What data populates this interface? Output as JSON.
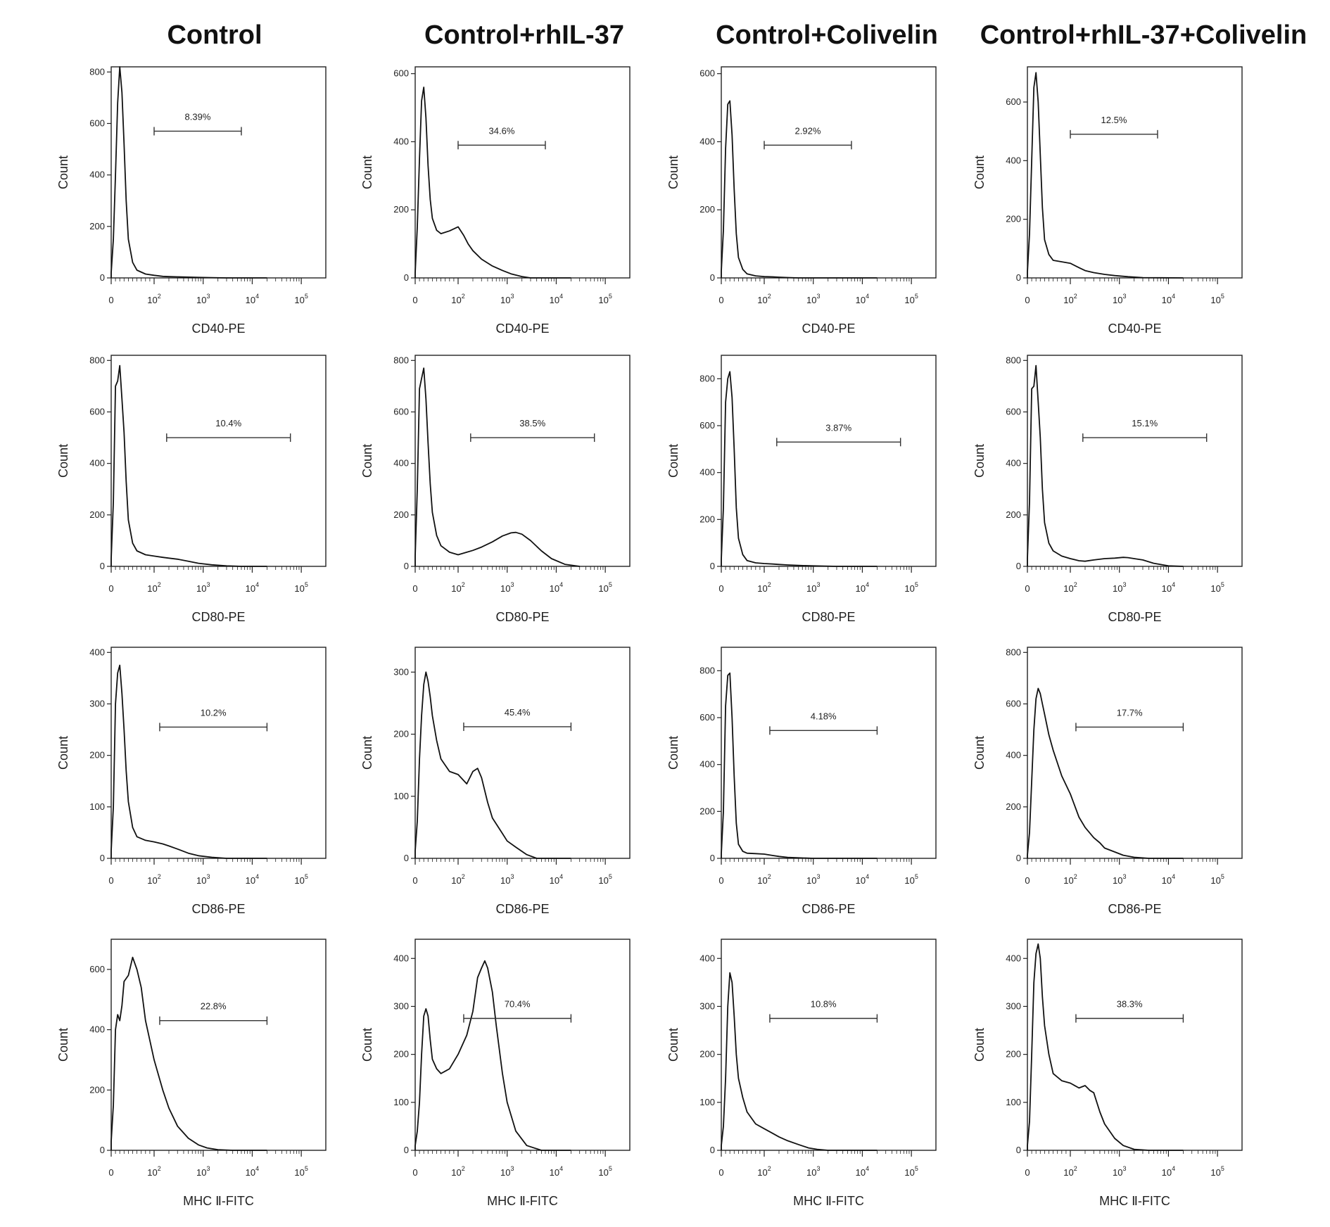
{
  "headers": [
    "Control",
    "Control+rhIL-37",
    "Control+Colivelin",
    "Control+rhIL-37+Colivelin"
  ],
  "chart_data": [
    {
      "type": "line",
      "panel": "Control CD40-PE",
      "xlabel": "CD40-PE",
      "ylabel": "Count",
      "xticks": [
        "0",
        "10^2",
        "10^3",
        "10^4",
        "10^5"
      ],
      "ylim": [
        0,
        820
      ],
      "yticks": [
        0,
        200,
        400,
        600,
        800
      ],
      "gate": {
        "label": "8.39%",
        "from": 100,
        "to": 6000,
        "y": 570
      },
      "x": [
        -30,
        -10,
        5,
        10,
        15,
        20,
        25,
        30,
        35,
        40,
        50,
        60,
        80,
        100,
        150,
        200,
        300,
        500,
        800,
        1500,
        3000,
        20000
      ],
      "y": [
        0,
        20,
        150,
        400,
        680,
        820,
        720,
        520,
        300,
        150,
        60,
        30,
        15,
        10,
        6,
        5,
        4,
        3,
        2,
        1,
        0,
        0
      ]
    },
    {
      "type": "line",
      "panel": "Control+rhIL-37 CD40-PE",
      "xlabel": "CD40-PE",
      "ylabel": "Count",
      "xticks": [
        "0",
        "10^2",
        "10^3",
        "10^4",
        "10^5"
      ],
      "ylim": [
        0,
        620
      ],
      "yticks": [
        0,
        200,
        400,
        600
      ],
      "gate": {
        "label": "34.6%",
        "from": 100,
        "to": 6000,
        "y": 390
      },
      "x": [
        -30,
        -10,
        5,
        10,
        15,
        20,
        25,
        30,
        35,
        40,
        50,
        60,
        80,
        100,
        130,
        160,
        200,
        300,
        500,
        800,
        1200,
        2000,
        3000,
        20000
      ],
      "y": [
        0,
        15,
        150,
        350,
        520,
        560,
        470,
        330,
        230,
        175,
        140,
        130,
        138,
        150,
        125,
        100,
        80,
        55,
        35,
        22,
        12,
        4,
        0,
        0
      ]
    },
    {
      "type": "line",
      "panel": "Control+Colivelin CD40-PE",
      "xlabel": "CD40-PE",
      "ylabel": "Count",
      "xticks": [
        "0",
        "10^2",
        "10^3",
        "10^4",
        "10^5"
      ],
      "ylim": [
        0,
        620
      ],
      "yticks": [
        0,
        200,
        400,
        600
      ],
      "gate": {
        "label": "2.92%",
        "from": 100,
        "to": 6000,
        "y": 390
      },
      "x": [
        -30,
        -10,
        5,
        10,
        15,
        20,
        25,
        30,
        35,
        40,
        50,
        60,
        80,
        100,
        150,
        200,
        300,
        500,
        1000,
        20000
      ],
      "y": [
        0,
        20,
        140,
        380,
        510,
        520,
        420,
        260,
        130,
        60,
        25,
        12,
        6,
        4,
        3,
        2,
        1,
        0,
        0,
        0
      ]
    },
    {
      "type": "line",
      "panel": "Control+rhIL-37+Colivelin CD40-PE",
      "xlabel": "CD40-PE",
      "ylabel": "Count",
      "xticks": [
        "0",
        "10^2",
        "10^3",
        "10^4",
        "10^5"
      ],
      "ylim": [
        0,
        720
      ],
      "yticks": [
        0,
        200,
        400,
        600
      ],
      "gate": {
        "label": "12.5%",
        "from": 100,
        "to": 6000,
        "y": 490
      },
      "x": [
        -30,
        -10,
        5,
        10,
        15,
        20,
        25,
        30,
        35,
        40,
        50,
        60,
        80,
        100,
        150,
        200,
        300,
        500,
        800,
        1500,
        3000,
        20000
      ],
      "y": [
        0,
        20,
        150,
        400,
        650,
        700,
        600,
        420,
        240,
        130,
        80,
        60,
        55,
        50,
        35,
        25,
        18,
        12,
        8,
        4,
        1,
        0
      ]
    },
    {
      "type": "line",
      "panel": "Control CD80-PE",
      "xlabel": "CD80-PE",
      "ylabel": "Count",
      "xticks": [
        "0",
        "10^2",
        "10^3",
        "10^4",
        "10^5"
      ],
      "ylim": [
        0,
        820
      ],
      "yticks": [
        0,
        200,
        400,
        600,
        800
      ],
      "gate": {
        "label": "10.4%",
        "from": 180,
        "to": 60000,
        "y": 500
      },
      "x": [
        -30,
        -10,
        5,
        10,
        15,
        20,
        25,
        30,
        35,
        40,
        50,
        60,
        80,
        100,
        150,
        200,
        300,
        500,
        800,
        1500,
        3000,
        6000,
        20000
      ],
      "y": [
        0,
        30,
        250,
        700,
        720,
        780,
        650,
        520,
        330,
        180,
        90,
        60,
        45,
        40,
        35,
        32,
        28,
        20,
        12,
        6,
        2,
        0,
        0
      ]
    },
    {
      "type": "line",
      "panel": "Control+rhIL-37 CD80-PE",
      "xlabel": "CD80-PE",
      "ylabel": "Count",
      "xticks": [
        "0",
        "10^2",
        "10^3",
        "10^4",
        "10^5"
      ],
      "ylim": [
        0,
        820
      ],
      "yticks": [
        0,
        200,
        400,
        600,
        800
      ],
      "gate": {
        "label": "38.5%",
        "from": 180,
        "to": 60000,
        "y": 500
      },
      "x": [
        -30,
        -10,
        5,
        10,
        15,
        20,
        25,
        30,
        35,
        40,
        50,
        60,
        80,
        100,
        150,
        200,
        300,
        500,
        800,
        1200,
        1500,
        2000,
        3000,
        5000,
        8000,
        15000,
        30000
      ],
      "y": [
        0,
        40,
        300,
        690,
        730,
        770,
        650,
        480,
        320,
        210,
        120,
        80,
        55,
        45,
        55,
        62,
        75,
        95,
        118,
        130,
        132,
        125,
        100,
        60,
        30,
        8,
        0
      ]
    },
    {
      "type": "line",
      "panel": "Control+Colivelin CD80-PE",
      "xlabel": "CD80-PE",
      "ylabel": "Count",
      "xticks": [
        "0",
        "10^2",
        "10^3",
        "10^4",
        "10^5"
      ],
      "ylim": [
        0,
        900
      ],
      "yticks": [
        0,
        200,
        400,
        600,
        800
      ],
      "gate": {
        "label": "3.87%",
        "from": 180,
        "to": 60000,
        "y": 530
      },
      "x": [
        -30,
        -10,
        5,
        10,
        15,
        20,
        25,
        30,
        35,
        40,
        50,
        60,
        80,
        100,
        150,
        200,
        300,
        500,
        1000,
        3000,
        20000
      ],
      "y": [
        0,
        30,
        250,
        700,
        800,
        830,
        720,
        500,
        250,
        120,
        50,
        25,
        15,
        12,
        10,
        8,
        6,
        4,
        2,
        0,
        0
      ]
    },
    {
      "type": "line",
      "panel": "Control+rhIL-37+Colivelin CD80-PE",
      "xlabel": "CD80-PE",
      "ylabel": "Count",
      "xticks": [
        "0",
        "10^2",
        "10^3",
        "10^4",
        "10^5"
      ],
      "ylim": [
        0,
        820
      ],
      "yticks": [
        0,
        200,
        400,
        600,
        800
      ],
      "gate": {
        "label": "15.1%",
        "from": 180,
        "to": 60000,
        "y": 500
      },
      "x": [
        -30,
        -10,
        5,
        10,
        15,
        20,
        25,
        30,
        35,
        40,
        50,
        60,
        80,
        100,
        150,
        200,
        300,
        500,
        800,
        1200,
        1500,
        2000,
        3000,
        5000,
        10000,
        20000
      ],
      "y": [
        0,
        30,
        250,
        690,
        700,
        780,
        640,
        500,
        300,
        170,
        90,
        60,
        40,
        30,
        22,
        20,
        25,
        30,
        32,
        35,
        34,
        30,
        25,
        12,
        2,
        0
      ]
    },
    {
      "type": "line",
      "panel": "Control CD86-PE",
      "xlabel": "CD86-PE",
      "ylabel": "Count",
      "xticks": [
        "0",
        "10^2",
        "10^3",
        "10^4",
        "10^5"
      ],
      "ylim": [
        0,
        410
      ],
      "yticks": [
        0,
        100,
        200,
        300,
        400
      ],
      "gate": {
        "label": "10.2%",
        "from": 130,
        "to": 20000,
        "y": 255
      },
      "x": [
        -30,
        -10,
        5,
        10,
        15,
        20,
        25,
        30,
        35,
        40,
        50,
        60,
        80,
        100,
        150,
        200,
        300,
        500,
        800,
        1500,
        3000,
        20000
      ],
      "y": [
        0,
        15,
        100,
        300,
        360,
        375,
        320,
        250,
        170,
        110,
        60,
        42,
        35,
        32,
        28,
        24,
        18,
        10,
        5,
        2,
        0,
        0
      ]
    },
    {
      "type": "line",
      "panel": "Control+rhIL-37 CD86-PE",
      "xlabel": "CD86-PE",
      "ylabel": "Count",
      "xticks": [
        "0",
        "10^2",
        "10^3",
        "10^4",
        "10^5"
      ],
      "ylim": [
        0,
        340
      ],
      "yticks": [
        0,
        100,
        200,
        300
      ],
      "gate": {
        "label": "45.4%",
        "from": 130,
        "to": 20000,
        "y": 212
      },
      "x": [
        -30,
        -10,
        5,
        10,
        15,
        20,
        25,
        30,
        35,
        40,
        50,
        60,
        80,
        100,
        150,
        200,
        250,
        300,
        400,
        500,
        800,
        1000,
        1500,
        2500,
        4000,
        20000
      ],
      "y": [
        0,
        12,
        60,
        160,
        230,
        280,
        300,
        285,
        260,
        230,
        190,
        160,
        140,
        135,
        120,
        140,
        145,
        130,
        90,
        65,
        40,
        28,
        18,
        6,
        0,
        0
      ]
    },
    {
      "type": "line",
      "panel": "Control+Colivelin CD86-PE",
      "xlabel": "CD86-PE",
      "ylabel": "Count",
      "xticks": [
        "0",
        "10^2",
        "10^3",
        "10^4",
        "10^5"
      ],
      "ylim": [
        0,
        900
      ],
      "yticks": [
        0,
        200,
        400,
        600,
        800
      ],
      "gate": {
        "label": "4.18%",
        "from": 130,
        "to": 20000,
        "y": 545
      },
      "x": [
        -30,
        -10,
        5,
        10,
        15,
        20,
        25,
        30,
        35,
        40,
        50,
        60,
        80,
        100,
        150,
        200,
        300,
        500,
        1000,
        3000,
        20000
      ],
      "y": [
        0,
        20,
        200,
        650,
        780,
        790,
        600,
        350,
        150,
        60,
        30,
        22,
        20,
        18,
        12,
        8,
        4,
        2,
        0,
        0,
        0
      ]
    },
    {
      "type": "line",
      "panel": "Control+rhIL-37+Colivelin CD86-PE",
      "xlabel": "CD86-PE",
      "ylabel": "Count",
      "xticks": [
        "0",
        "10^2",
        "10^3",
        "10^4",
        "10^5"
      ],
      "ylim": [
        0,
        820
      ],
      "yticks": [
        0,
        200,
        400,
        600,
        800
      ],
      "gate": {
        "label": "17.7%",
        "from": 130,
        "to": 20000,
        "y": 510
      },
      "x": [
        -30,
        -10,
        5,
        10,
        15,
        20,
        25,
        30,
        35,
        40,
        50,
        60,
        80,
        100,
        150,
        200,
        300,
        400,
        500,
        800,
        1200,
        2000,
        4000,
        20000
      ],
      "y": [
        0,
        12,
        100,
        300,
        500,
        620,
        660,
        640,
        600,
        560,
        480,
        420,
        320,
        250,
        160,
        120,
        80,
        60,
        40,
        25,
        12,
        4,
        0,
        0
      ]
    },
    {
      "type": "line",
      "panel": "Control MHC II-FITC",
      "xlabel": "MHC Ⅱ-FITC",
      "ylabel": "Count",
      "xticks": [
        "0",
        "10^2",
        "10^3",
        "10^4",
        "10^5"
      ],
      "ylim": [
        0,
        700
      ],
      "yticks": [
        0,
        200,
        400,
        600
      ],
      "gate": {
        "label": "22.8%",
        "from": 130,
        "to": 20000,
        "y": 430
      },
      "x": [
        -30,
        -10,
        5,
        10,
        15,
        20,
        25,
        30,
        40,
        50,
        60,
        70,
        80,
        100,
        150,
        200,
        300,
        500,
        800,
        1200,
        2000,
        4000,
        20000
      ],
      "y": [
        0,
        30,
        150,
        400,
        450,
        430,
        480,
        560,
        580,
        640,
        600,
        540,
        430,
        300,
        200,
        140,
        80,
        40,
        18,
        8,
        2,
        0,
        0
      ]
    },
    {
      "type": "line",
      "panel": "Control+rhIL-37 MHC II-FITC",
      "xlabel": "MHC Ⅱ-FITC",
      "ylabel": "Count",
      "xticks": [
        "0",
        "10^2",
        "10^3",
        "10^4",
        "10^5"
      ],
      "ylim": [
        0,
        440
      ],
      "yticks": [
        0,
        100,
        200,
        300,
        400
      ],
      "gate": {
        "label": "70.4%",
        "from": 130,
        "to": 20000,
        "y": 275
      },
      "x": [
        -30,
        -10,
        5,
        10,
        15,
        20,
        25,
        30,
        35,
        40,
        50,
        60,
        80,
        100,
        150,
        200,
        250,
        300,
        350,
        400,
        500,
        600,
        800,
        1000,
        1500,
        2500,
        5000,
        20000
      ],
      "y": [
        0,
        10,
        40,
        100,
        200,
        280,
        295,
        280,
        230,
        190,
        170,
        160,
        170,
        200,
        240,
        290,
        360,
        380,
        395,
        380,
        330,
        260,
        160,
        100,
        40,
        10,
        0,
        0
      ]
    },
    {
      "type": "line",
      "panel": "Control+Colivelin MHC II-FITC",
      "xlabel": "MHC Ⅱ-FITC",
      "ylabel": "Count",
      "xticks": [
        "0",
        "10^2",
        "10^3",
        "10^4",
        "10^5"
      ],
      "ylim": [
        0,
        440
      ],
      "yticks": [
        0,
        100,
        200,
        300,
        400
      ],
      "gate": {
        "label": "10.8%",
        "from": 130,
        "to": 20000,
        "y": 275
      },
      "x": [
        -30,
        -10,
        5,
        10,
        15,
        20,
        25,
        30,
        35,
        40,
        50,
        60,
        80,
        100,
        150,
        200,
        300,
        500,
        800,
        1200,
        2000,
        4000,
        20000
      ],
      "y": [
        0,
        10,
        50,
        150,
        300,
        370,
        350,
        280,
        200,
        150,
        110,
        80,
        55,
        45,
        35,
        28,
        20,
        12,
        5,
        2,
        0,
        0,
        0
      ]
    },
    {
      "type": "line",
      "panel": "Control+rhIL-37+Colivelin MHC II-FITC",
      "xlabel": "MHC Ⅱ-FITC",
      "ylabel": "Count",
      "xticks": [
        "0",
        "10^2",
        "10^3",
        "10^4",
        "10^5"
      ],
      "ylim": [
        0,
        440
      ],
      "yticks": [
        0,
        100,
        200,
        300,
        400
      ],
      "gate": {
        "label": "38.3%",
        "from": 130,
        "to": 20000,
        "y": 275
      },
      "x": [
        -30,
        -10,
        5,
        10,
        15,
        20,
        25,
        30,
        35,
        40,
        50,
        60,
        80,
        100,
        150,
        200,
        250,
        300,
        400,
        500,
        800,
        1200,
        2000,
        4000,
        20000
      ],
      "y": [
        0,
        10,
        60,
        200,
        350,
        410,
        430,
        400,
        320,
        260,
        200,
        160,
        145,
        140,
        130,
        135,
        125,
        120,
        80,
        55,
        25,
        10,
        2,
        0,
        0
      ]
    }
  ]
}
